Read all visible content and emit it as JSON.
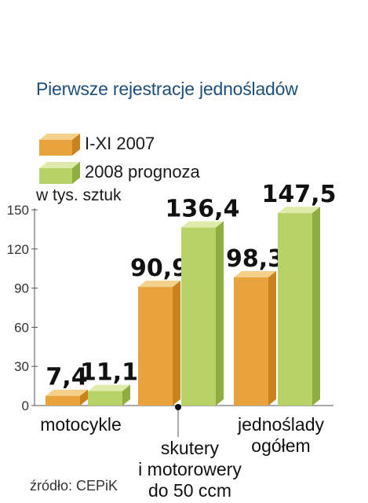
{
  "colors": {
    "series_2007_front": "#e9a33c",
    "series_2007_top": "#f5d08a",
    "series_2007_side": "#c9821d",
    "series_2008_front": "#b7d267",
    "series_2008_top": "#deebaa",
    "series_2008_side": "#8fae3f",
    "title": "#1f4e79"
  },
  "chart_data": {
    "type": "bar",
    "title": "Pierwsze rejestracje jednośladów",
    "ylabel": "w tys. sztuk",
    "ylim": [
      0,
      150
    ],
    "yticks": [
      0,
      30,
      60,
      90,
      120,
      150
    ],
    "categories": [
      [
        "motocykle"
      ],
      [
        "skutery",
        "i motorowery",
        "do 50 ccm"
      ],
      [
        "jednoślady",
        "ogółem"
      ]
    ],
    "series": [
      {
        "name": "I-XI 2007",
        "values": [
          7.4,
          90.9,
          98.3
        ],
        "labels": [
          "7,4",
          "90,9",
          "98,3"
        ]
      },
      {
        "name": "2008 prognoza",
        "values": [
          11.1,
          136.4,
          147.5
        ],
        "labels": [
          "11,1",
          "136,4",
          "147,5"
        ]
      }
    ],
    "legend": "top-left",
    "grid": false
  },
  "source": "źródło: CEPiK"
}
